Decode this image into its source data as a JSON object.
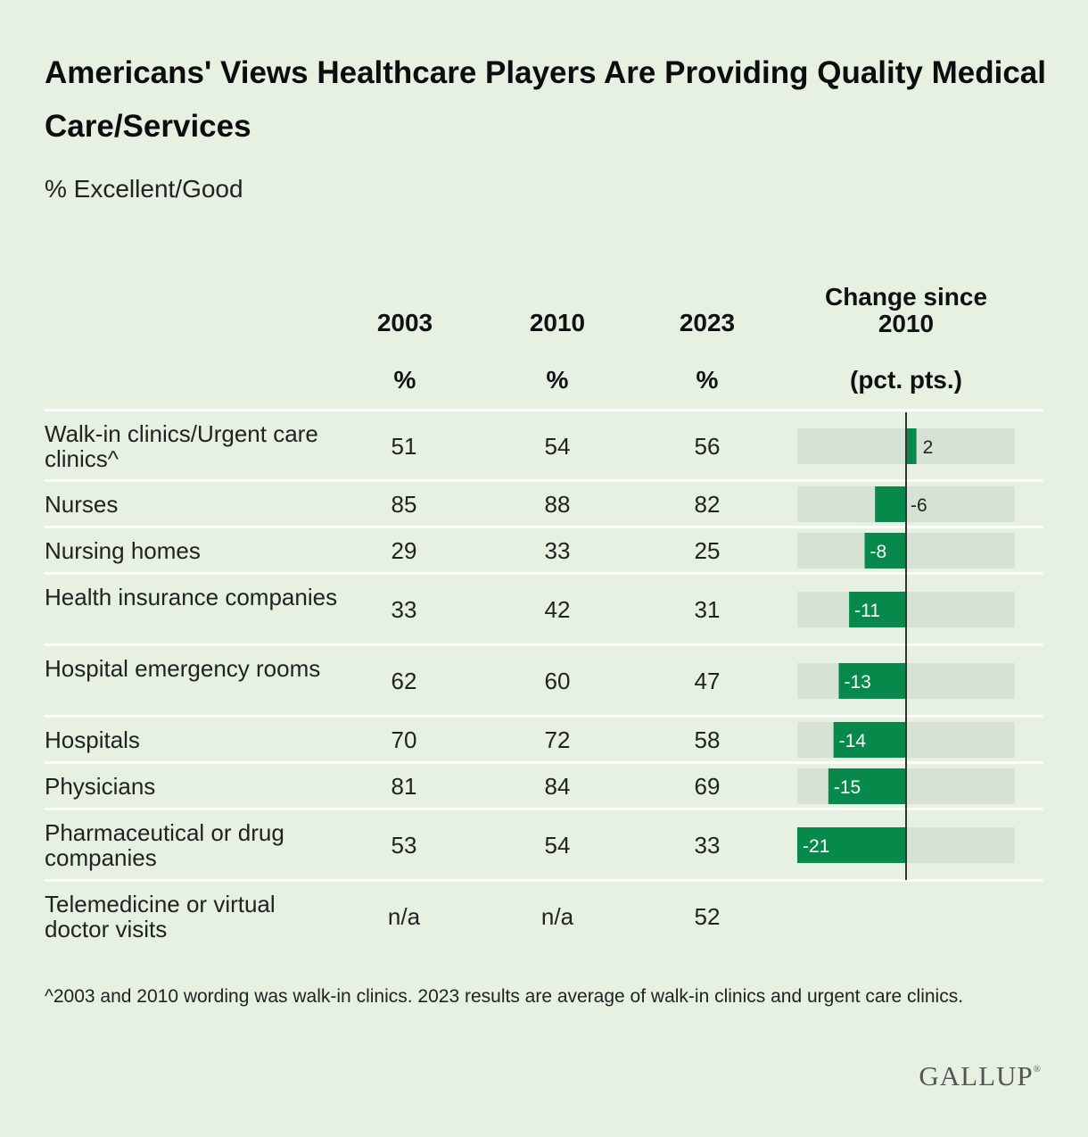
{
  "title": "Americans' Views Healthcare Players Are Providing Quality Medical Care/Services",
  "subtitle": "% Excellent/Good",
  "headers": {
    "y2003": "2003",
    "y2010": "2010",
    "y2023": "2023",
    "pct": "%",
    "change_line1": "Change since",
    "change_line2": "2010",
    "change_unit": "(pct. pts.)"
  },
  "rows": [
    {
      "label": "Walk-in clinics/Urgent care clinics^",
      "v2003": "51",
      "v2010": "54",
      "v2023": "56",
      "change": 2
    },
    {
      "label": "Nurses",
      "v2003": "85",
      "v2010": "88",
      "v2023": "82",
      "change": -6
    },
    {
      "label": "Nursing homes",
      "v2003": "29",
      "v2010": "33",
      "v2023": "25",
      "change": -8
    },
    {
      "label": "Health insurance companies",
      "v2003": "33",
      "v2010": "42",
      "v2023": "31",
      "change": -11
    },
    {
      "label": "Hospital emergency rooms",
      "v2003": "62",
      "v2010": "60",
      "v2023": "47",
      "change": -13
    },
    {
      "label": "Hospitals",
      "v2003": "70",
      "v2010": "72",
      "v2023": "58",
      "change": -14
    },
    {
      "label": "Physicians",
      "v2003": "81",
      "v2010": "84",
      "v2023": "69",
      "change": -15
    },
    {
      "label": "Pharmaceutical or drug companies",
      "v2003": "53",
      "v2010": "54",
      "v2023": "33",
      "change": -21
    },
    {
      "label": "Telemedicine or virtual doctor visits",
      "v2003": "n/a",
      "v2010": "n/a",
      "v2023": "52",
      "change": null
    }
  ],
  "chart_data": {
    "type": "bar",
    "title": "Change since 2010",
    "categories": [
      "Walk-in clinics/Urgent care clinics^",
      "Nurses",
      "Nursing homes",
      "Health insurance companies",
      "Hospital emergency rooms",
      "Hospitals",
      "Physicians",
      "Pharmaceutical or drug companies"
    ],
    "values": [
      2,
      -6,
      -8,
      -11,
      -13,
      -14,
      -15,
      -21
    ],
    "ylabel": "(pct. pts.)",
    "ylim": [
      -21,
      21
    ]
  },
  "colors": {
    "bar": "#07894b",
    "track": "#d6e2d3",
    "background": "#e6f1e2",
    "axis": "#333333"
  },
  "footnote": "^2003 and 2010 wording was walk-in clinics. 2023 results are average of walk-in clinics and urgent care clinics.",
  "brand": "GALLUP",
  "brand_mark": "®"
}
